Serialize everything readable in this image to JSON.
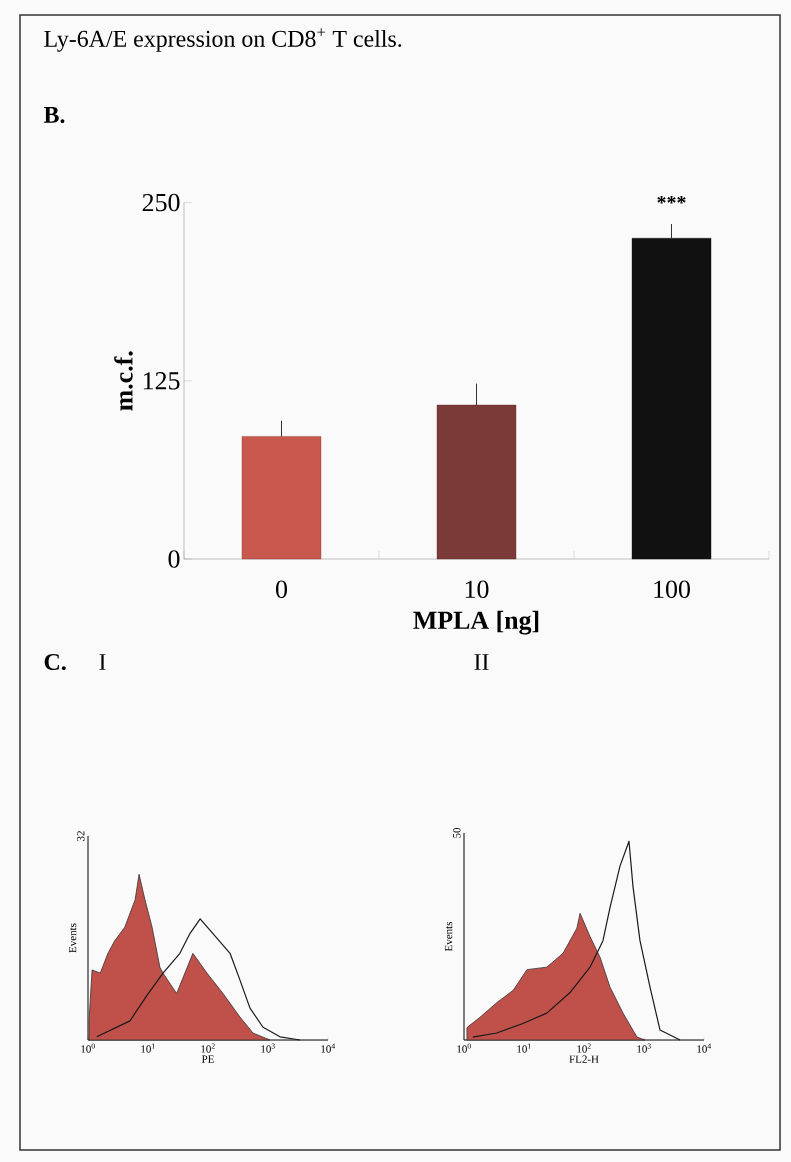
{
  "chart_data": [
    {
      "type": "bar",
      "title": "Ly-6A/E expression on CD8$^{+}$ T cells.",
      "xlabel": "MPLA [ng]",
      "ylabel": "m.c.f.",
      "categories": [
        "0",
        "10",
        "100"
      ],
      "values": [
        86,
        108,
        225
      ],
      "colors": [
        "#c8584e",
        "#7a3a38",
        "#111111"
      ],
      "errors": [
        [
          86,
          97
        ],
        [
          108,
          123
        ],
        [
          225,
          235
        ]
      ],
      "ylim": [
        0,
        250
      ],
      "yticks": [
        0,
        125,
        250
      ],
      "annotations": [
        "B.",
        "***"
      ]
    },
    {
      "type": "area",
      "title": "I",
      "xlabel": "PE",
      "ylabel": "Events",
      "log": "x",
      "annotations": [
        "C."
      ],
      "xlim": [
        1,
        10000
      ],
      "xticks": [
        {
          "value": 1,
          "label": "10$^{0}$"
        },
        {
          "value": 10,
          "label": "10$^{1}$"
        },
        {
          "value": 100,
          "label": "10$^{2}$"
        },
        {
          "value": 1000,
          "label": "10$^{3}$"
        },
        {
          "value": 10000,
          "label": "10$^{4}$"
        }
      ],
      "ylim": [
        0,
        32
      ],
      "yticks": [
        32
      ],
      "series": [
        {
          "type": "area",
          "color": "#c0504a",
          "x": [
            1.04,
            1.17,
            1.6,
            2.15,
            2.8,
            4.1,
            6.1,
            7.1,
            8.9,
            11.7,
            15.8,
            17.8,
            30,
            56,
            96,
            178,
            341,
            562,
            1080
          ],
          "values": [
            3,
            11,
            10.5,
            13.6,
            15.6,
            17.7,
            22,
            26,
            22,
            17.7,
            11.4,
            10.5,
            7.3,
            13.6,
            10.5,
            7.3,
            3.6,
            1.1,
            0
          ]
        },
        {
          "type": "line",
          "color": "#1a1a1a",
          "x": [
            1.4,
            5,
            9.6,
            17.8,
            34,
            50,
            74,
            121,
            233,
            341,
            501,
            826,
            1585,
            3415
          ],
          "values": [
            0.5,
            3,
            7,
            10.5,
            13.6,
            16.7,
            19,
            16.7,
            13.6,
            9.4,
            5,
            2,
            0.5,
            0
          ]
        }
      ]
    },
    {
      "type": "area",
      "title": "II",
      "xlabel": "FL2-H",
      "ylabel": "Events",
      "log": "x",
      "xlim": [
        1,
        10000
      ],
      "xticks": [
        {
          "value": 1,
          "label": "10$^{0}$"
        },
        {
          "value": 10,
          "label": "10$^{1}$"
        },
        {
          "value": 100,
          "label": "10$^{2}$"
        },
        {
          "value": 1000,
          "label": "10$^{3}$"
        },
        {
          "value": 10000,
          "label": "10$^{4}$"
        }
      ],
      "ylim": [
        0,
        50
      ],
      "yticks": [
        50
      ],
      "series": [
        {
          "type": "area",
          "color": "#c0504a",
          "x": [
            1.12,
            1.85,
            3.5,
            6.6,
            11.2,
            24,
            45,
            76,
            86,
            126,
            185,
            271,
            447,
            764,
            1040
          ],
          "values": [
            3,
            5.5,
            9,
            12,
            17,
            17.6,
            21,
            27,
            30.6,
            25,
            20,
            12.8,
            6.5,
            0.7,
            0
          ]
        },
        {
          "type": "line",
          "color": "#1a1a1a",
          "x": [
            1.4,
            3.5,
            9.6,
            24,
            58,
            126,
            207,
            271,
            398,
            562,
            656,
            857,
            1259,
            1849,
            3981
          ],
          "values": [
            0.7,
            1.7,
            4,
            6.5,
            11.4,
            17.6,
            24,
            32,
            42,
            48,
            37,
            24,
            12.8,
            2.4,
            0
          ]
        }
      ]
    }
  ]
}
